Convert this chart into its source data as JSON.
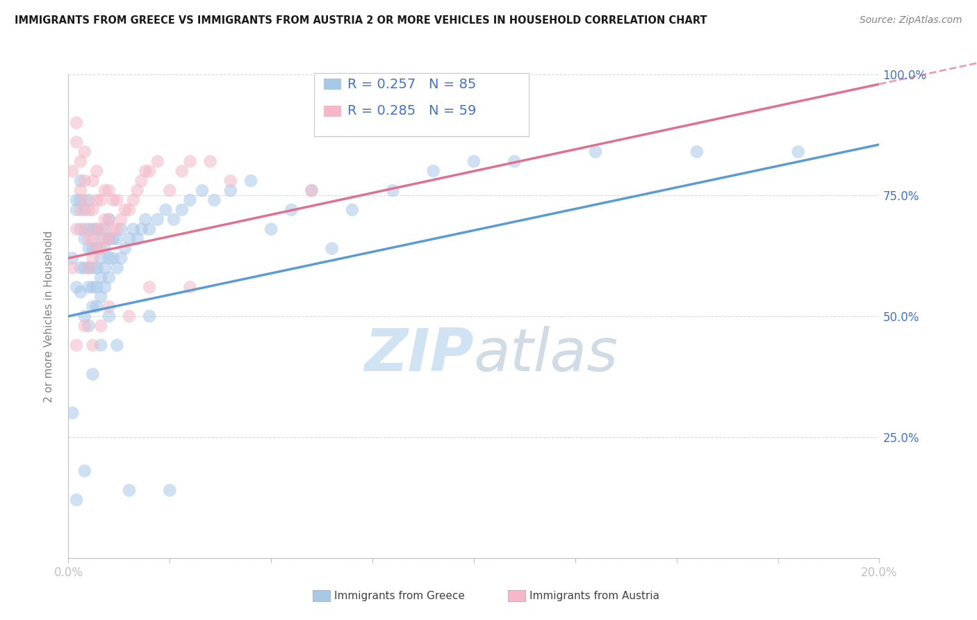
{
  "title": "IMMIGRANTS FROM GREECE VS IMMIGRANTS FROM AUSTRIA 2 OR MORE VEHICLES IN HOUSEHOLD CORRELATION CHART",
  "source": "Source: ZipAtlas.com",
  "ylabel": "2 or more Vehicles in Household",
  "legend_greece": "Immigrants from Greece",
  "legend_austria": "Immigrants from Austria",
  "R_greece": 0.257,
  "N_greece": 85,
  "R_austria": 0.285,
  "N_austria": 59,
  "color_greece": "#a8c8e8",
  "color_austria": "#f4b8c8",
  "color_greece_line": "#5b9bd5",
  "color_austria_line": "#e07090",
  "color_austria_dash": "#e8a0b0",
  "xlim": [
    0.0,
    0.2
  ],
  "ylim": [
    0.0,
    1.0
  ],
  "line_greece_x0": 0.0,
  "line_greece_y0": 0.5,
  "line_greece_x1": 0.2,
  "line_greece_y1": 0.855,
  "line_austria_x0": 0.0,
  "line_austria_y0": 0.62,
  "line_austria_x1": 0.2,
  "line_austria_y1": 0.98,
  "greece_x": [
    0.001,
    0.001,
    0.002,
    0.002,
    0.002,
    0.003,
    0.003,
    0.003,
    0.003,
    0.003,
    0.004,
    0.004,
    0.004,
    0.004,
    0.005,
    0.005,
    0.005,
    0.005,
    0.005,
    0.005,
    0.006,
    0.006,
    0.006,
    0.006,
    0.006,
    0.007,
    0.007,
    0.007,
    0.007,
    0.007,
    0.008,
    0.008,
    0.008,
    0.008,
    0.009,
    0.009,
    0.009,
    0.009,
    0.01,
    0.01,
    0.01,
    0.01,
    0.011,
    0.011,
    0.012,
    0.012,
    0.013,
    0.013,
    0.014,
    0.015,
    0.016,
    0.017,
    0.018,
    0.019,
    0.02,
    0.022,
    0.024,
    0.026,
    0.028,
    0.03,
    0.033,
    0.036,
    0.04,
    0.045,
    0.05,
    0.055,
    0.06,
    0.065,
    0.07,
    0.08,
    0.09,
    0.1,
    0.11,
    0.13,
    0.155,
    0.18,
    0.002,
    0.004,
    0.006,
    0.008,
    0.01,
    0.012,
    0.015,
    0.02,
    0.025
  ],
  "greece_y": [
    0.62,
    0.3,
    0.72,
    0.74,
    0.56,
    0.55,
    0.6,
    0.68,
    0.74,
    0.78,
    0.6,
    0.66,
    0.72,
    0.5,
    0.56,
    0.6,
    0.64,
    0.68,
    0.74,
    0.48,
    0.52,
    0.56,
    0.6,
    0.64,
    0.68,
    0.52,
    0.56,
    0.6,
    0.64,
    0.68,
    0.54,
    0.58,
    0.62,
    0.66,
    0.56,
    0.6,
    0.64,
    0.68,
    0.58,
    0.62,
    0.66,
    0.7,
    0.62,
    0.66,
    0.6,
    0.66,
    0.62,
    0.68,
    0.64,
    0.66,
    0.68,
    0.66,
    0.68,
    0.7,
    0.68,
    0.7,
    0.72,
    0.7,
    0.72,
    0.74,
    0.76,
    0.74,
    0.76,
    0.78,
    0.68,
    0.72,
    0.76,
    0.64,
    0.72,
    0.76,
    0.8,
    0.82,
    0.82,
    0.84,
    0.84,
    0.84,
    0.12,
    0.18,
    0.38,
    0.44,
    0.5,
    0.44,
    0.14,
    0.5,
    0.14
  ],
  "austria_x": [
    0.001,
    0.001,
    0.002,
    0.002,
    0.002,
    0.003,
    0.003,
    0.003,
    0.004,
    0.004,
    0.004,
    0.004,
    0.005,
    0.005,
    0.005,
    0.006,
    0.006,
    0.006,
    0.006,
    0.007,
    0.007,
    0.007,
    0.007,
    0.008,
    0.008,
    0.008,
    0.009,
    0.009,
    0.009,
    0.01,
    0.01,
    0.01,
    0.011,
    0.011,
    0.012,
    0.012,
    0.013,
    0.014,
    0.015,
    0.016,
    0.017,
    0.018,
    0.019,
    0.02,
    0.022,
    0.025,
    0.028,
    0.03,
    0.035,
    0.04,
    0.002,
    0.004,
    0.006,
    0.008,
    0.01,
    0.015,
    0.02,
    0.03,
    0.06
  ],
  "austria_y": [
    0.8,
    0.6,
    0.86,
    0.9,
    0.68,
    0.72,
    0.76,
    0.82,
    0.68,
    0.74,
    0.78,
    0.84,
    0.6,
    0.66,
    0.72,
    0.62,
    0.66,
    0.72,
    0.78,
    0.64,
    0.68,
    0.74,
    0.8,
    0.64,
    0.68,
    0.74,
    0.66,
    0.7,
    0.76,
    0.66,
    0.7,
    0.76,
    0.68,
    0.74,
    0.68,
    0.74,
    0.7,
    0.72,
    0.72,
    0.74,
    0.76,
    0.78,
    0.8,
    0.8,
    0.82,
    0.76,
    0.8,
    0.82,
    0.82,
    0.78,
    0.44,
    0.48,
    0.44,
    0.48,
    0.52,
    0.5,
    0.56,
    0.56,
    0.76
  ]
}
